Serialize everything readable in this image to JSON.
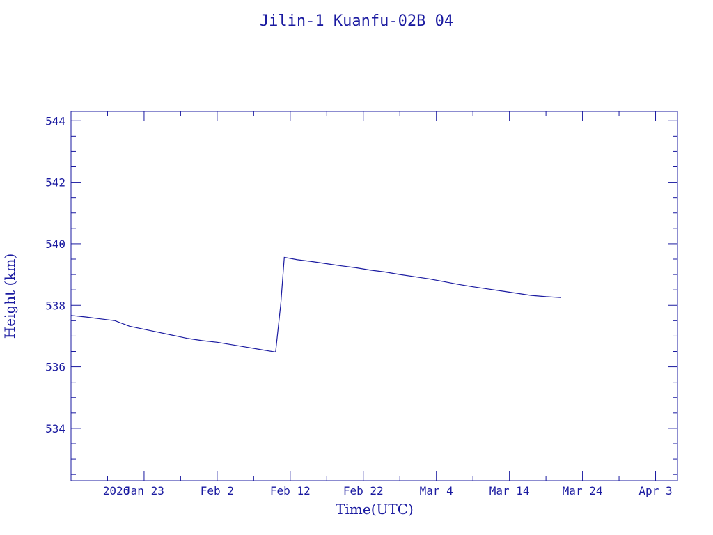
{
  "chart_data": {
    "type": "line",
    "title": "Jilin-1 Kuanfu-02B 04",
    "xlabel": "Time(UTC)",
    "ylabel": "Height (km)",
    "x_start_label": "2026",
    "xlim": [
      "2026-01-13",
      "2026-04-06"
    ],
    "ylim": [
      532.3,
      544.3
    ],
    "x_ticks": [
      {
        "date": "2026-01-23",
        "label": "Jan 23"
      },
      {
        "date": "2026-02-02",
        "label": "Feb  2"
      },
      {
        "date": "2026-02-12",
        "label": "Feb 12"
      },
      {
        "date": "2026-02-22",
        "label": "Feb 22"
      },
      {
        "date": "2026-03-04",
        "label": "Mar  4"
      },
      {
        "date": "2026-03-14",
        "label": "Mar 14"
      },
      {
        "date": "2026-03-24",
        "label": "Mar 24"
      },
      {
        "date": "2026-04-03",
        "label": "Apr  3"
      }
    ],
    "y_ticks": [
      534,
      536,
      538,
      540,
      542,
      544
    ],
    "color": "#1a1aa0",
    "series": [
      {
        "points": [
          [
            "2026-01-13",
            537.67
          ],
          [
            "2026-01-15",
            537.62
          ],
          [
            "2026-01-17",
            537.56
          ],
          [
            "2026-01-19",
            537.5
          ],
          [
            "2026-01-21",
            537.32
          ],
          [
            "2026-01-23",
            537.22
          ],
          [
            "2026-01-25",
            537.12
          ],
          [
            "2026-01-27",
            537.02
          ],
          [
            "2026-01-29",
            536.92
          ],
          [
            "2026-01-31",
            536.85
          ],
          [
            "2026-02-02",
            536.8
          ],
          [
            "2026-02-04",
            536.72
          ],
          [
            "2026-02-06",
            536.64
          ],
          [
            "2026-02-08",
            536.56
          ],
          [
            "2026-02-10",
            536.48
          ],
          [
            "2026-02-11",
            538.05
          ],
          [
            "2026-02-11",
            539.56
          ],
          [
            "2026-02-13",
            539.48
          ],
          [
            "2026-02-15",
            539.42
          ],
          [
            "2026-02-17",
            539.35
          ],
          [
            "2026-02-19",
            539.28
          ],
          [
            "2026-02-21",
            539.22
          ],
          [
            "2026-02-23",
            539.14
          ],
          [
            "2026-02-25",
            539.08
          ],
          [
            "2026-02-27",
            539.0
          ],
          [
            "2026-03-01",
            538.93
          ],
          [
            "2026-03-03",
            538.86
          ],
          [
            "2026-03-05",
            538.77
          ],
          [
            "2026-03-07",
            538.68
          ],
          [
            "2026-03-09",
            538.6
          ],
          [
            "2026-03-11",
            538.53
          ],
          [
            "2026-03-13",
            538.46
          ],
          [
            "2026-03-15",
            538.39
          ],
          [
            "2026-03-17",
            538.32
          ],
          [
            "2026-03-19",
            538.28
          ],
          [
            "2026-03-21",
            538.25
          ]
        ]
      }
    ]
  }
}
